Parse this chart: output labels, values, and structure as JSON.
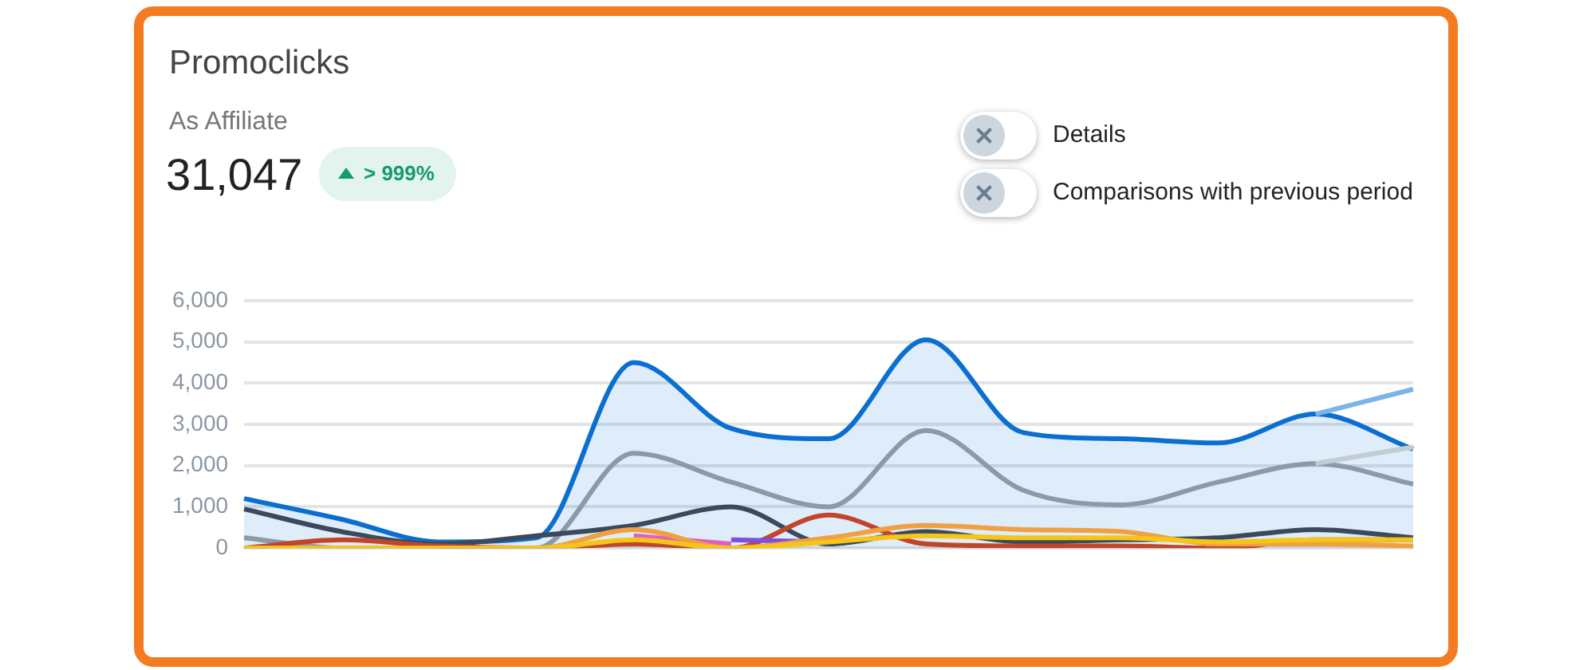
{
  "chart_data": {
    "type": "line",
    "title": "Promoclicks",
    "annotations": [
      "As Affiliate",
      "31,047",
      "> 999%",
      "Details",
      "Comparisons with previous period"
    ],
    "categories": [
      null,
      null,
      null,
      null,
      null,
      null,
      null,
      null,
      null,
      null,
      null,
      null,
      null
    ],
    "ylim": [
      0,
      6000
    ],
    "yticks": [
      {
        "value": 0,
        "label": "0"
      },
      {
        "value": 1000,
        "label": "1,000"
      },
      {
        "value": 2000,
        "label": "2,000"
      },
      {
        "value": 3000,
        "label": "3,000"
      },
      {
        "value": 4000,
        "label": "4,000"
      },
      {
        "value": 5000,
        "label": "5,000"
      },
      {
        "value": 6000,
        "label": "6,000"
      }
    ],
    "grid": "y",
    "legend": false,
    "marker": "none",
    "line_style": "solid",
    "series": [
      {
        "color": "#7ab4e8",
        "values": [
          null,
          null,
          null,
          null,
          null,
          null,
          null,
          null,
          null,
          null,
          null,
          3250,
          3850
        ]
      },
      {
        "color": "#c3cbd3",
        "values": [
          null,
          null,
          null,
          null,
          null,
          null,
          null,
          null,
          null,
          null,
          null,
          2050,
          2450
        ]
      },
      {
        "color": "#f5c518",
        "values": [
          0,
          0,
          0,
          0,
          200,
          0,
          150,
          300,
          250,
          250,
          150,
          200,
          200
        ]
      },
      {
        "color": "#f0a040",
        "values": [
          0,
          0,
          0,
          0,
          450,
          0,
          250,
          550,
          450,
          400,
          100,
          100,
          50
        ]
      },
      {
        "color": "#e060c0",
        "values": [
          null,
          null,
          null,
          null,
          300,
          100,
          null,
          null,
          null,
          null,
          null,
          null,
          null
        ]
      },
      {
        "color": "#7b4fe0",
        "values": [
          null,
          null,
          null,
          null,
          null,
          200,
          150,
          null,
          null,
          null,
          null,
          null,
          null
        ]
      },
      {
        "color": "#c0452a",
        "values": [
          0,
          200,
          50,
          0,
          100,
          0,
          800,
          100,
          50,
          50,
          0,
          200,
          200
        ]
      },
      {
        "color": "#3a4a5c",
        "values": [
          950,
          400,
          100,
          300,
          550,
          1000,
          100,
          400,
          150,
          200,
          250,
          450,
          250
        ]
      },
      {
        "color": "#8a9aa8",
        "values": [
          250,
          0,
          0,
          0,
          2300,
          1600,
          1000,
          2850,
          1400,
          1050,
          1600,
          2050,
          1550
        ]
      },
      {
        "type": "area",
        "color": "#0a6fd0",
        "values": [
          1200,
          700,
          150,
          250,
          4500,
          2900,
          2650,
          5050,
          2800,
          2650,
          2550,
          3250,
          2400
        ]
      }
    ]
  }
}
